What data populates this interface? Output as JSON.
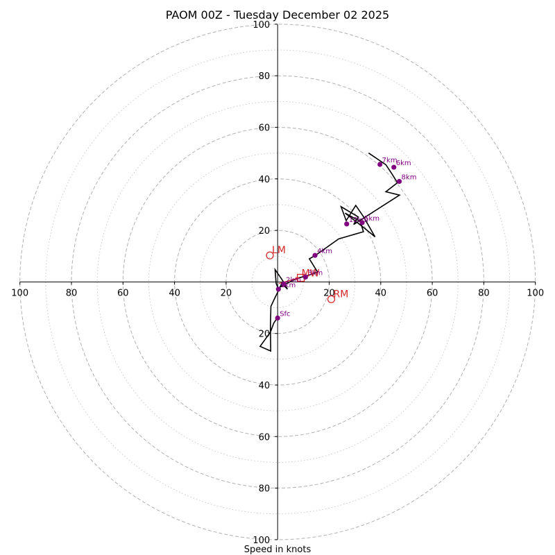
{
  "chart_data": {
    "type": "hodograph",
    "title": "PAOM 00Z - Tuesday December 02 2025",
    "xlabel": "Speed in knots",
    "units": "knots",
    "max_speed": 100,
    "ring_major": [
      20,
      40,
      60,
      80,
      100
    ],
    "ring_minor": [
      10,
      30,
      50,
      70,
      90
    ],
    "x_tick_labels": [
      "100",
      "80",
      "60",
      "40",
      "20",
      "20",
      "40",
      "60",
      "80",
      "100"
    ],
    "y_tick_labels": [
      "100",
      "80",
      "60",
      "40",
      "20",
      "20",
      "40",
      "60",
      "80",
      "100"
    ],
    "trace": [
      [
        -0.2,
        -14.0
      ],
      [
        -1.5,
        -16.0
      ],
      [
        -2.8,
        -19.5
      ],
      [
        -6.8,
        -25.0
      ],
      [
        -2.7,
        -26.8
      ],
      [
        -2.8,
        -17.0
      ],
      [
        -2.6,
        -9.5
      ],
      [
        -1.2,
        -6.5
      ],
      [
        0.5,
        -3.0
      ],
      [
        1.6,
        -0.5
      ],
      [
        3.8,
        -2.8
      ],
      [
        2.8,
        -0.8
      ],
      [
        1.3,
        1.5
      ],
      [
        -1.0,
        4.8
      ],
      [
        -0.6,
        -0.5
      ],
      [
        0.2,
        -2.5
      ],
      [
        2.2,
        -1.2
      ],
      [
        7.8,
        1.5
      ],
      [
        10.8,
        2.2
      ],
      [
        15.5,
        3.8
      ],
      [
        12.3,
        9.0
      ],
      [
        14.5,
        10.2
      ],
      [
        23.7,
        16.7
      ],
      [
        33.3,
        19.5
      ],
      [
        32.0,
        23.5
      ],
      [
        26.2,
        26.7
      ],
      [
        33.5,
        21.0
      ],
      [
        37.8,
        17.5
      ],
      [
        33.2,
        25.5
      ],
      [
        30.3,
        29.7
      ],
      [
        26.6,
        23.8
      ],
      [
        24.6,
        29.2
      ],
      [
        31.3,
        25.2
      ],
      [
        29.5,
        22.3
      ],
      [
        47.3,
        33.7
      ],
      [
        42.0,
        35.0
      ],
      [
        46.5,
        38.5
      ],
      [
        44.3,
        42.0
      ],
      [
        42.0,
        45.5
      ],
      [
        35.3,
        50.0
      ]
    ],
    "height_markers": [
      {
        "label": "Sfc",
        "u": 0.0,
        "v": -14.0
      },
      {
        "label": "1km",
        "u": 0.3,
        "v": -2.8
      },
      {
        "label": "2km",
        "u": 2.4,
        "v": -0.8
      },
      {
        "label": "3km",
        "u": 10.8,
        "v": 1.9
      },
      {
        "label": "4km",
        "u": 14.5,
        "v": 10.3
      },
      {
        "label": "5km",
        "u": 32.8,
        "v": 23.0
      },
      {
        "label": "6km",
        "u": 45.1,
        "v": 44.5
      },
      {
        "label": "7km",
        "u": 39.7,
        "v": 45.6
      },
      {
        "label": "8km",
        "u": 47.2,
        "v": 39.0
      },
      {
        "label": "12km",
        "u": 26.8,
        "v": 22.5
      }
    ],
    "motion_markers": [
      {
        "label": "LM",
        "u": -3.0,
        "v": 10.3
      },
      {
        "label": "RM",
        "u": 20.8,
        "v": -6.7
      },
      {
        "label": "MW",
        "u": 9.0,
        "v": 1.6
      }
    ],
    "shear_vector": {
      "from_u": 0.5,
      "from_v": -0.6,
      "to_u": 8.5,
      "to_v": 1.6
    },
    "colors": {
      "trace": "#000000",
      "height": "#800080",
      "motion": "#d62728",
      "grid": "#b0b0b0",
      "axis": "#000000"
    }
  }
}
